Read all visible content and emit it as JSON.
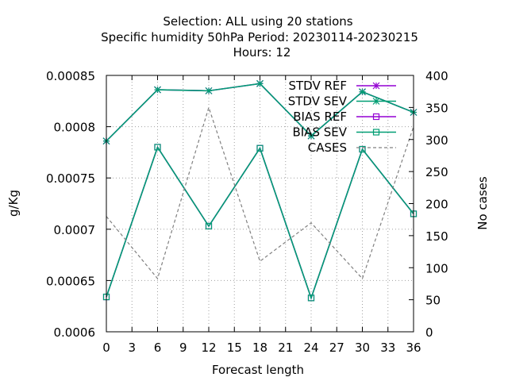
{
  "chart_data": {
    "type": "line",
    "title_lines": [
      "Selection: ALL using    20 stations",
      "Specific humidity 50hPa   Period: 20230114-20230215",
      "Hours:  12"
    ],
    "xlabel": "Forecast length",
    "ylabel": "g/Kg",
    "y2label": "No cases",
    "xlim": [
      0,
      36
    ],
    "ylim": [
      0.0006,
      0.00085
    ],
    "y2lim": [
      0,
      400
    ],
    "xticks": [
      "0",
      "3",
      "6",
      "9",
      "12",
      "15",
      "18",
      "21",
      "24",
      "27",
      "30",
      "33",
      "36"
    ],
    "yticks": [
      "0.0006",
      "0.00065",
      "0.0007",
      "0.00075",
      "0.0008",
      "0.00085"
    ],
    "y2ticks": [
      "0",
      "50",
      "100",
      "150",
      "200",
      "250",
      "300",
      "350",
      "400"
    ],
    "grid": true,
    "legend_position": "top-right",
    "x": [
      0,
      6,
      12,
      18,
      24,
      30,
      36
    ],
    "series": [
      {
        "name": "STDV REF",
        "axis": "y",
        "color": "#9400d3",
        "marker": "star",
        "dash": "solid",
        "values": [
          0.000786,
          0.000836,
          0.000835,
          0.000842,
          0.000791,
          0.000834,
          0.000814
        ]
      },
      {
        "name": "STDV SEV",
        "axis": "y",
        "color": "#009e73",
        "marker": "star",
        "dash": "solid",
        "values": [
          0.000786,
          0.000836,
          0.000835,
          0.000842,
          0.000791,
          0.000834,
          0.000814
        ]
      },
      {
        "name": "BIAS REF",
        "axis": "y",
        "color": "#9400d3",
        "marker": "square",
        "dash": "solid",
        "values": [
          0.000634,
          0.00078,
          0.000703,
          0.000779,
          0.000633,
          0.000778,
          0.000715
        ]
      },
      {
        "name": "BIAS SEV",
        "axis": "y",
        "color": "#009e73",
        "marker": "square",
        "dash": "solid",
        "values": [
          0.000634,
          0.00078,
          0.000703,
          0.000779,
          0.000633,
          0.000778,
          0.000715
        ]
      },
      {
        "name": "CASES",
        "axis": "y2",
        "color": "#808080",
        "marker": "none",
        "dash": "dashed",
        "values": [
          180,
          83,
          350,
          110,
          170,
          83,
          320
        ]
      }
    ]
  }
}
